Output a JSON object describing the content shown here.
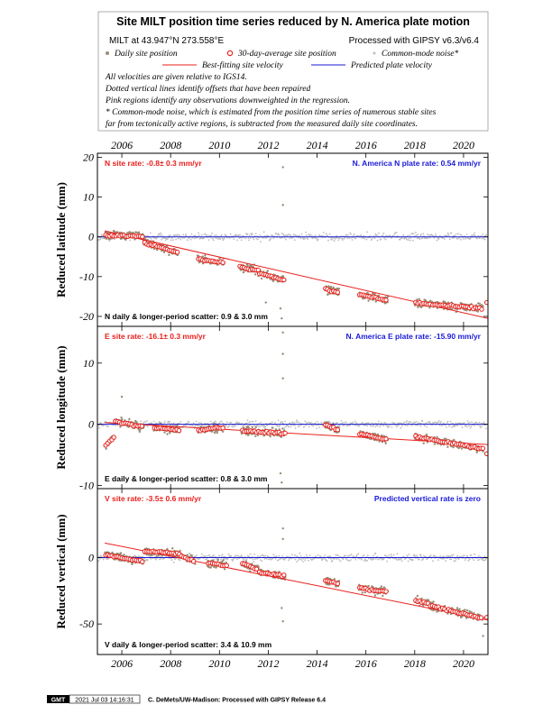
{
  "header": {
    "title": "Site MILT position time series reduced by N. America plate motion",
    "site_line": "MILT at 43.947°N 273.558°E",
    "processed_line": "Processed with GIPSY v6.3/v6.4",
    "legend": {
      "daily": "Daily site position",
      "avg30": "30-day-average site position",
      "cm": "Common-mode noise*",
      "best": "Best-fitting site velocity",
      "pred": "Predicted plate velocity"
    },
    "notes": [
      "All velocities are given relative to IGS14.",
      "Dotted vertical lines identify offsets that have been repaired",
      "Pink regions identify any observations downweighted in the regression.",
      "* Common-mode noise, which is estimated from the position time series of numerous stable sites",
      "far from tectonically active regions, is subtracted from the measured daily site coordinates."
    ]
  },
  "colors": {
    "daily": "#9c8b74",
    "common_mode": "#bdbdbd",
    "average_edge": "#e8201c",
    "best_fit": "#e8201c",
    "predicted": "#1a1ad8",
    "site_rate_text": "#e8201c",
    "plate_rate_text": "#1a1ad8"
  },
  "chart_data": [
    {
      "type": "scatter",
      "ylabel": "Reduced latitude (mm)",
      "xlim": [
        2005.0,
        2021.0
      ],
      "ylim": [
        -22.5,
        21
      ],
      "yticks": [
        -20,
        -10,
        0,
        10,
        20
      ],
      "xticks": [
        2006,
        2008,
        2010,
        2012,
        2014,
        2016,
        2018,
        2020
      ],
      "site_rate": "N site rate:  -0.8± 0.3 mm/yr",
      "plate_rate": "N. America N plate rate: 0.54 mm/yr",
      "scatter": "N daily & longer-period scatter:   0.9 &   3.0 mm",
      "best_fit": {
        "x": [
          2005.3,
          2021.0
        ],
        "y": [
          1.5,
          -20.5
        ]
      },
      "predicted": {
        "x": [
          2005.0,
          2021.0
        ],
        "y": [
          0,
          0
        ]
      },
      "segments": [
        {
          "x": [
            2005.3,
            2006.9
          ],
          "y": [
            0.5,
            0.0
          ]
        },
        {
          "x": [
            2006.9,
            2008.3
          ],
          "y": [
            -1.5,
            -4.0
          ]
        },
        {
          "x": [
            2009.1,
            2010.2
          ],
          "y": [
            -5.5,
            -6.5
          ]
        },
        {
          "x": [
            2010.8,
            2011.6
          ],
          "y": [
            -7.5,
            -8.5
          ]
        },
        {
          "x": [
            2011.6,
            2012.7
          ],
          "y": [
            -9.0,
            -11.0
          ]
        },
        {
          "x": [
            2014.3,
            2014.9
          ],
          "y": [
            -13.0,
            -14.0
          ]
        },
        {
          "x": [
            2015.7,
            2016.9
          ],
          "y": [
            -14.5,
            -16.0
          ]
        },
        {
          "x": [
            2018.0,
            2018.7
          ],
          "y": [
            -16.5,
            -17.0
          ]
        },
        {
          "x": [
            2018.7,
            2020.8
          ],
          "y": [
            -17.0,
            -18.0
          ]
        }
      ],
      "outliers": [
        [
          2012.6,
          17.5
        ],
        [
          2012.6,
          8.0
        ],
        [
          2012.5,
          -18.0
        ],
        [
          2012.55,
          -20.5
        ],
        [
          2011.9,
          -16.5
        ]
      ],
      "last_average": [
        2020.95,
        -16.5
      ]
    },
    {
      "type": "scatter",
      "ylabel": "Reduced longitude (mm)",
      "xlim": [
        2005.0,
        2021.0
      ],
      "ylim": [
        -10.5,
        16
      ],
      "yticks": [
        -10,
        0,
        10
      ],
      "xticks": [
        2006,
        2008,
        2010,
        2012,
        2014,
        2016,
        2018,
        2020
      ],
      "site_rate": "E site rate:  -16.1± 0.3 mm/yr",
      "plate_rate": "N. America E plate rate: -15.90 mm/yr",
      "scatter": "E daily & longer-period scatter:   0.8 &   3.0 mm",
      "best_fit": {
        "x": [
          2005.3,
          2021.0
        ],
        "y": [
          0.3,
          -3.3
        ]
      },
      "predicted": {
        "x": [
          2005.0,
          2021.0
        ],
        "y": [
          0,
          0
        ]
      },
      "segments": [
        {
          "x": [
            2005.3,
            2005.7
          ],
          "y": [
            -3.5,
            -2.0
          ]
        },
        {
          "x": [
            2005.7,
            2006.9
          ],
          "y": [
            0.5,
            -0.5
          ]
        },
        {
          "x": [
            2007.3,
            2008.4
          ],
          "y": [
            -0.5,
            -1.0
          ]
        },
        {
          "x": [
            2009.1,
            2010.2
          ],
          "y": [
            -1.0,
            -0.5
          ]
        },
        {
          "x": [
            2010.9,
            2012.7
          ],
          "y": [
            -1.0,
            -1.5
          ]
        },
        {
          "x": [
            2014.3,
            2014.9
          ],
          "y": [
            0.0,
            -1.0
          ]
        },
        {
          "x": [
            2015.7,
            2016.9
          ],
          "y": [
            -1.5,
            -2.5
          ]
        },
        {
          "x": [
            2018.0,
            2020.8
          ],
          "y": [
            -2.0,
            -4.0
          ]
        }
      ],
      "outliers": [
        [
          2012.6,
          15.0
        ],
        [
          2012.6,
          11.5
        ],
        [
          2012.6,
          7.5
        ],
        [
          2012.5,
          -8.0
        ],
        [
          2012.55,
          -9.5
        ],
        [
          2006.0,
          4.5
        ]
      ],
      "last_average": [
        2020.95,
        -4.8
      ]
    },
    {
      "type": "scatter",
      "ylabel": "Reduced vertical (mm)",
      "xlim": [
        2005.0,
        2021.0
      ],
      "ylim": [
        -73,
        52
      ],
      "yticks": [
        -50,
        0
      ],
      "xticks": [
        2006,
        2008,
        2010,
        2012,
        2014,
        2016,
        2018,
        2020
      ],
      "site_rate": "V site rate:  -3.5± 0.6 mm/yr",
      "plate_rate": "Predicted vertical rate is zero",
      "scatter": "V daily & longer-period scatter:   3.4 &  10.9 mm",
      "best_fit": {
        "x": [
          2005.3,
          2021.0
        ],
        "y": [
          11,
          -47
        ]
      },
      "predicted": {
        "x": [
          2005.0,
          2021.0
        ],
        "y": [
          0,
          0
        ]
      },
      "segments": [
        {
          "x": [
            2005.3,
            2006.9
          ],
          "y": [
            2,
            -3
          ]
        },
        {
          "x": [
            2006.9,
            2008.4
          ],
          "y": [
            5,
            3
          ]
        },
        {
          "x": [
            2008.4,
            2009.0
          ],
          "y": [
            1,
            -3
          ]
        },
        {
          "x": [
            2009.5,
            2010.3
          ],
          "y": [
            -4,
            -6
          ]
        },
        {
          "x": [
            2010.9,
            2011.6
          ],
          "y": [
            -4,
            -9
          ]
        },
        {
          "x": [
            2011.6,
            2012.7
          ],
          "y": [
            -11,
            -14
          ]
        },
        {
          "x": [
            2014.3,
            2014.9
          ],
          "y": [
            -17,
            -20
          ]
        },
        {
          "x": [
            2015.7,
            2016.9
          ],
          "y": [
            -23,
            -26
          ]
        },
        {
          "x": [
            2018.0,
            2018.6
          ],
          "y": [
            -32,
            -35
          ]
        },
        {
          "x": [
            2018.6,
            2020.8
          ],
          "y": [
            -36,
            -46
          ]
        }
      ],
      "outliers": [
        [
          2012.6,
          22
        ],
        [
          2012.6,
          14
        ],
        [
          2012.6,
          -48
        ],
        [
          2012.55,
          -38
        ],
        [
          2020.8,
          -59
        ]
      ],
      "last_average": [
        2020.95,
        -45
      ]
    }
  ],
  "footer": {
    "badge": "GMT",
    "timestamp": "2021 Jul 03 14:16:31",
    "credit": "C. DeMets/UW-Madison: Processed with GIPSY Release 6.4"
  }
}
